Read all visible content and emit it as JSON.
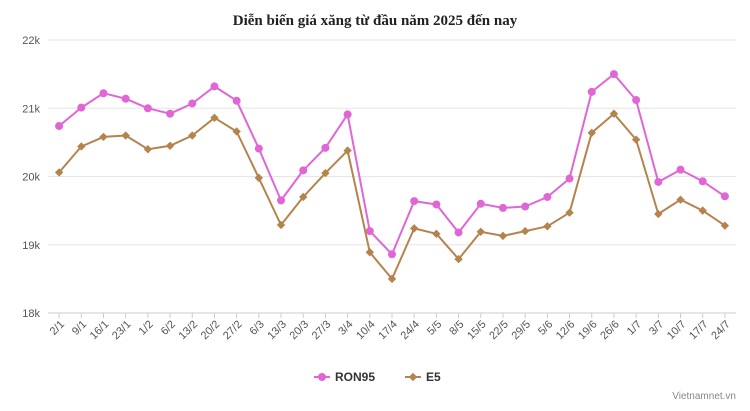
{
  "watermark": "Vietnamnet.vn",
  "chart_data": {
    "type": "line",
    "title": "Diễn biến giá xăng từ đầu năm 2025 đến nay",
    "categories": [
      "2/1",
      "9/1",
      "16/1",
      "23/1",
      "1/2",
      "6/2",
      "13/2",
      "20/2",
      "27/2",
      "6/3",
      "13/3",
      "20/3",
      "27/3",
      "3/4",
      "10/4",
      "17/4",
      "24/4",
      "5/5",
      "8/5",
      "15/5",
      "22/5",
      "29/5",
      "5/6",
      "12/6",
      "19/6",
      "26/6",
      "1/7",
      "3/7",
      "10/7",
      "17/7",
      "24/7"
    ],
    "ylim": [
      18000,
      22000
    ],
    "yticks": [
      18000,
      19000,
      20000,
      21000,
      22000
    ],
    "ytick_labels": [
      "18k",
      "19k",
      "20k",
      "21k",
      "22k"
    ],
    "grid": true,
    "legend_position": "bottom-center",
    "series": [
      {
        "name": "RON95",
        "color": "#e066d6",
        "marker": "circle",
        "values": [
          20740,
          21010,
          21220,
          21140,
          21000,
          20920,
          21070,
          21320,
          21110,
          20410,
          19650,
          20090,
          20420,
          20910,
          19200,
          18860,
          19640,
          19590,
          19180,
          19600,
          19540,
          19560,
          19700,
          19970,
          21240,
          21500,
          21120,
          19920,
          20100,
          19930,
          19710
        ]
      },
      {
        "name": "E5",
        "color": "#b5844e",
        "marker": "diamond",
        "values": [
          20060,
          20440,
          20580,
          20600,
          20400,
          20450,
          20600,
          20860,
          20660,
          19980,
          19290,
          19700,
          20050,
          20380,
          18890,
          18500,
          19240,
          19160,
          18790,
          19190,
          19130,
          19200,
          19270,
          19470,
          20640,
          20920,
          20540,
          19450,
          19660,
          19500,
          19280
        ]
      }
    ]
  }
}
